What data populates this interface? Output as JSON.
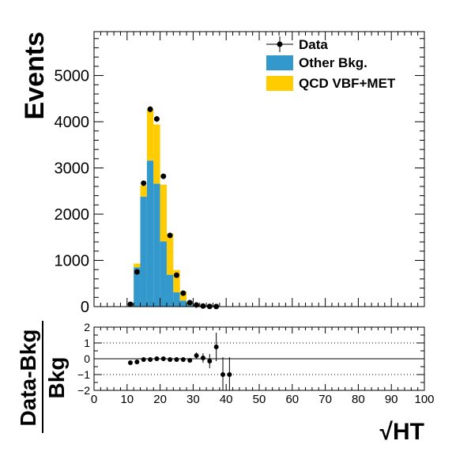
{
  "chart_data": [
    {
      "type": "bar",
      "panel": "main",
      "stacked": true,
      "xlim": [
        0,
        100
      ],
      "ylim": [
        0,
        5950
      ],
      "ylabel": "Events",
      "yticks": [
        "0",
        "1000",
        "2000",
        "3000",
        "4000",
        "5000"
      ],
      "bin_width": 2,
      "bins_low_edges": [
        12,
        14,
        16,
        18,
        20,
        22,
        24,
        26,
        28,
        30,
        32,
        34,
        36
      ],
      "series": [
        {
          "name": "Other Bkg.",
          "color": "#3399cc",
          "values": [
            850,
            2380,
            3160,
            2660,
            1410,
            690,
            310,
            130,
            40,
            15,
            5,
            2,
            1
          ]
        },
        {
          "name": "QCD VBF+MET",
          "color": "#ffcc00",
          "values": [
            80,
            240,
            1110,
            1280,
            1230,
            890,
            480,
            200,
            60,
            25,
            10,
            4,
            2
          ]
        }
      ],
      "data": {
        "name": "Data",
        "x": [
          11,
          13,
          15,
          17,
          19,
          21,
          23,
          25,
          27,
          29,
          31,
          33,
          35,
          37
        ],
        "y": [
          50,
          750,
          2670,
          4270,
          4060,
          2820,
          1540,
          680,
          290,
          85,
          35,
          12,
          4,
          2
        ]
      },
      "legend": [
        "Data",
        "Other Bkg.",
        "QCD VBF+MET"
      ],
      "legend_position": "top-right"
    },
    {
      "type": "scatter",
      "panel": "ratio",
      "xlim": [
        0,
        100
      ],
      "ylim": [
        -2,
        2
      ],
      "xlabel": "√HT",
      "ylabel_top": "Data-Bkg",
      "ylabel_bottom": "Bkg",
      "xticks": [
        "0",
        "10",
        "20",
        "30",
        "40",
        "50",
        "60",
        "70",
        "80",
        "90",
        "100"
      ],
      "yticks": [
        "−2",
        "−1",
        "0",
        "1",
        "2"
      ],
      "x": [
        11,
        13,
        15,
        17,
        19,
        21,
        23,
        25,
        27,
        29,
        31,
        33,
        35,
        37,
        39,
        41
      ],
      "y": [
        -0.25,
        -0.2,
        -0.05,
        -0.05,
        0.0,
        0.0,
        -0.05,
        -0.05,
        -0.05,
        -0.1,
        0.2,
        0.05,
        -0.15,
        0.75,
        -1.0,
        -1.0
      ],
      "yerr": [
        0.05,
        0.05,
        0.03,
        0.03,
        0.03,
        0.03,
        0.04,
        0.05,
        0.08,
        0.12,
        0.2,
        0.3,
        0.45,
        0.9,
        1.1,
        1.1
      ],
      "reference_lines": [
        -1,
        0,
        1
      ]
    }
  ]
}
